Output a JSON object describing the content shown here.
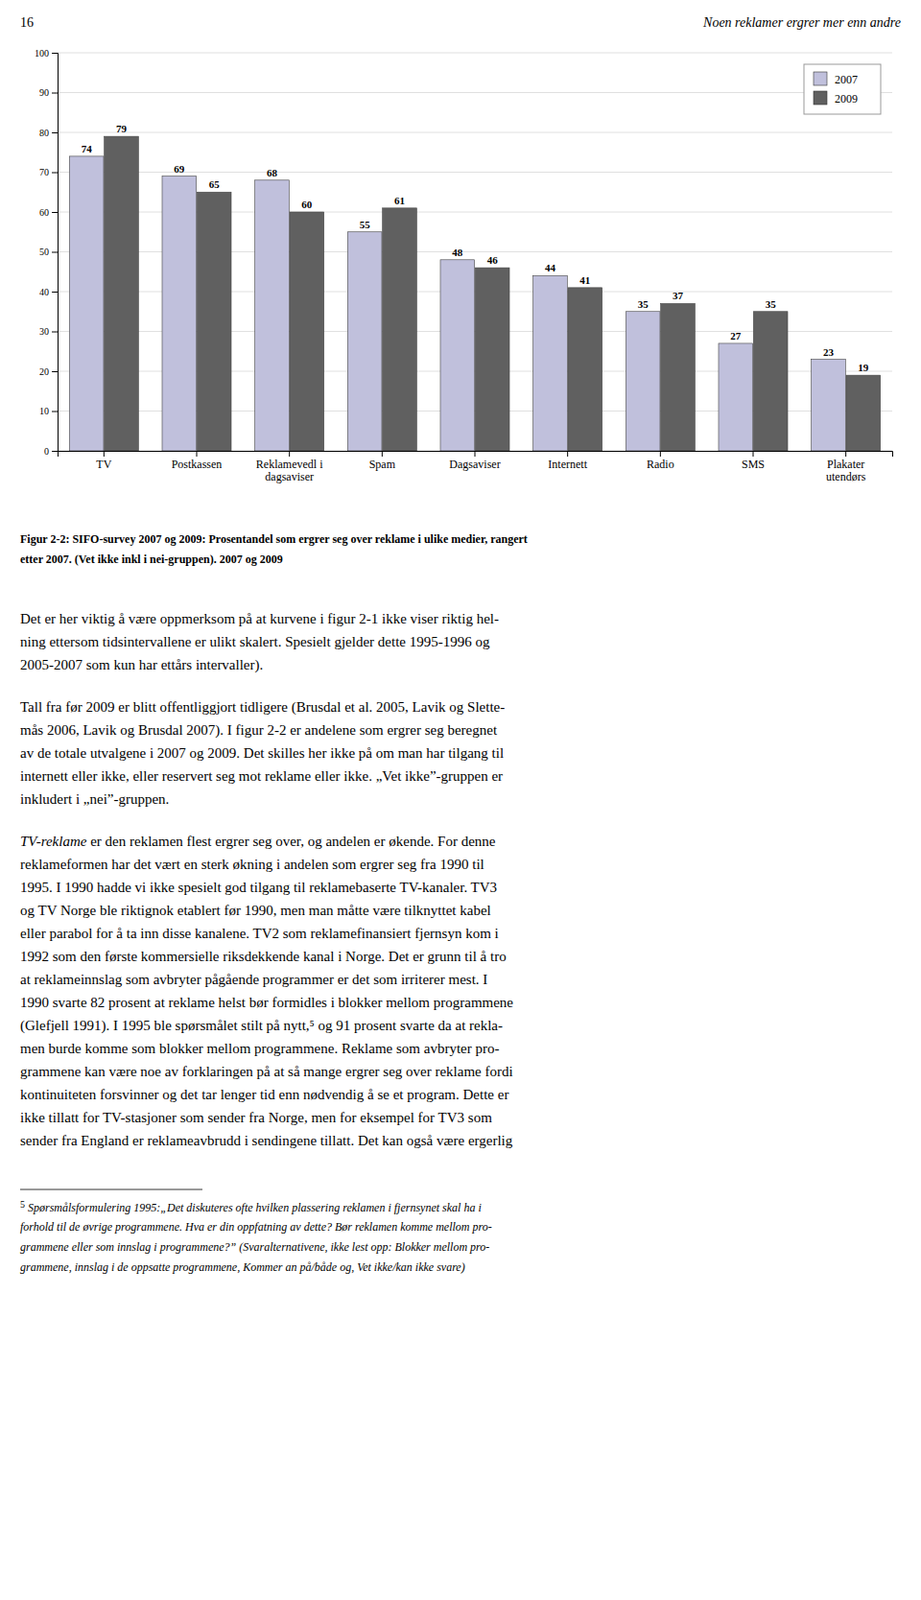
{
  "chart_data": {
    "type": "bar",
    "categories": [
      "TV",
      "Postkassen",
      "Reklamevedl i\ndagsaviser",
      "Spam",
      "Dagsaviser",
      "Internett",
      "Radio",
      "SMS",
      "Plakater\nutendørs"
    ],
    "series": [
      {
        "name": "2007",
        "color": "#c0c0dc",
        "values": [
          74,
          69,
          68,
          55,
          48,
          44,
          35,
          27,
          23
        ]
      },
      {
        "name": "2009",
        "color": "#606060",
        "values": [
          79,
          65,
          60,
          61,
          46,
          41,
          37,
          35,
          19
        ]
      }
    ],
    "ylim": [
      0,
      100
    ],
    "yticks": [
      0,
      10,
      20,
      30,
      40,
      50,
      60,
      70,
      80,
      90,
      100
    ],
    "grid": true,
    "legend": "upper right",
    "data_labels": true
  },
  "page": {
    "header_left": "16",
    "header_right": "Noen reklamer ergrer mer enn andre",
    "caption": [
      "Figur 2-2: SIFO-survey 2007 og 2009: Prosentandel som ergrer seg over reklame i ulike medier, rangert",
      "etter 2007. (Vet ikke inkl i nei-gruppen). 2007 og 2009"
    ],
    "paragraphs": [
      [
        "Det er her viktig å være oppmerksom på at kurvene i figur 2-1 ikke viser riktig hel-",
        "ning ettersom tidsintervallene er ulikt skalert. Spesielt gjelder dette 1995-1996 og",
        "2005-2007 som kun har ettårs intervaller)."
      ],
      [
        "Tall fra før 2009 er blitt offentliggjort tidligere (Brusdal et al. 2005, Lavik og Slette-",
        "mås 2006, Lavik og Brusdal 2007). I figur 2-2 er andelene som ergrer seg beregnet",
        "av de totale utvalgene i 2007 og 2009. Det skilles her ikke på om man har tilgang til",
        "internett eller ikke, eller reservert seg mot reklame eller ikke. „Vet ikke”-gruppen er",
        "inkludert i „nei”-gruppen."
      ],
      [
        " er den reklamen flest ergrer seg over, og andelen er økende. For denne",
        "reklameformen har det vært en sterk økning i andelen som ergrer seg fra 1990 til",
        "1995. I 1990 hadde vi ikke spesielt god tilgang til reklamebaserte TV-kanaler. TV3",
        "og TV Norge ble riktignok etablert før 1990, men man måtte være tilknyttet kabel",
        "eller parabol for å ta inn disse kanalene. TV2 som reklamefinansiert fjernsyn kom i",
        "1992 som den første kommersielle riksdekkende kanal i Norge. Det er grunn til å tro",
        "at reklameinnslag som avbryter pågående programmer er det som irriterer mest. I",
        "1990 svarte 82 prosent at reklame helst bør formidles i blokker mellom programmene",
        "(Glefjell 1991). I 1995 ble spørsmålet stilt på nytt,⁵ og 91 prosent svarte da at rekla-",
        "men burde komme som blokker mellom programmene. Reklame som avbryter pro-",
        "grammene kan være noe av forklaringen på at så mange ergrer seg over reklame fordi",
        "kontinuiteten forsvinner og det tar lenger tid enn nødvendig å se et program. Dette er",
        "ikke tillatt for TV-stasjoner som sender fra Norge, men for eksempel for TV3 som",
        "sender fra England er reklameavbrudd i sendingene tillatt. Det kan også være ergerlig"
      ]
    ],
    "para3_italic": "TV-reklame",
    "footnote_number": "5",
    "footnote": [
      " Spørsmålsformulering 1995:„Det diskuteres ofte hvilken plassering reklamen i fjernsynet skal ha i",
      "forhold til de øvrige programmene. Hva er din oppfatning av dette? Bør reklamen komme mellom pro-",
      "grammene eller som innslag i programmene?” (Svaralternativene, ikke lest opp: Blokker mellom pro-",
      "grammene, innslag i de oppsatte programmene, Kommer an på/både og, Vet ikke/kan ikke svare)"
    ]
  }
}
